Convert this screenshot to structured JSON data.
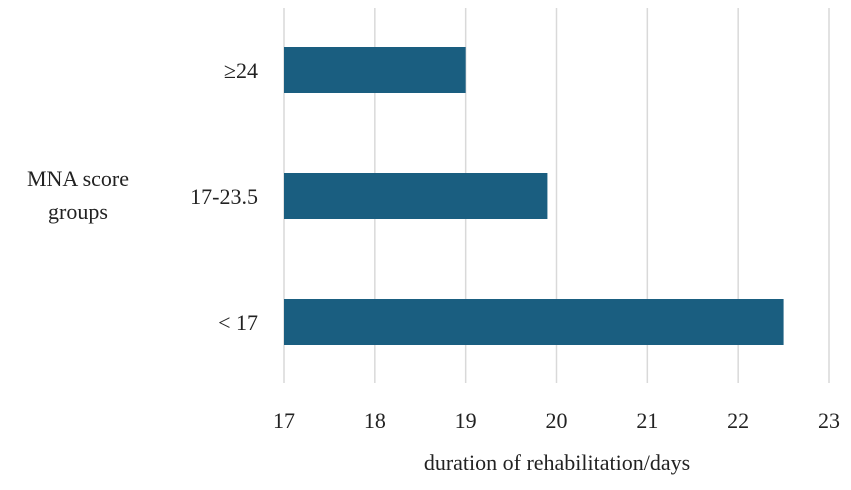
{
  "chart_data": {
    "type": "bar",
    "orientation": "horizontal",
    "title": "",
    "ylabel": "MNA score groups",
    "xlabel": "duration of rehabilitation/days",
    "categories": [
      "≥24",
      "17-23.5",
      "< 17"
    ],
    "values": [
      19.0,
      19.9,
      22.5
    ],
    "xlim": [
      17,
      23
    ],
    "xticks": [
      "17",
      "18",
      "19",
      "20",
      "21",
      "22",
      "23"
    ],
    "grid": true,
    "bar_color": "#1a5e80",
    "gridline_color": "#d9d9d9"
  }
}
